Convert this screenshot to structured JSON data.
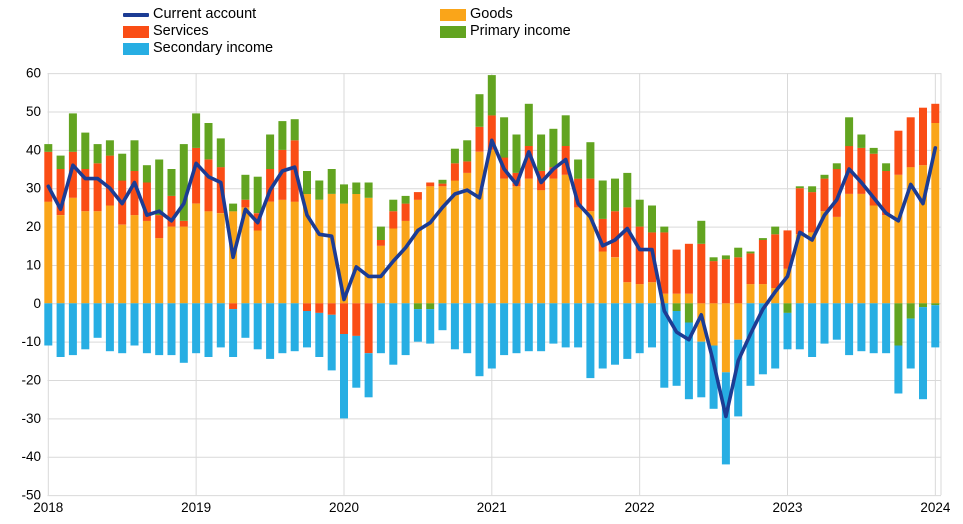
{
  "chart_data": {
    "type": "stacked-bar+line",
    "title": "",
    "xlabel": "",
    "ylabel": "",
    "ylim": [
      -50,
      60
    ],
    "y_ticks": [
      60,
      50,
      40,
      30,
      20,
      10,
      0,
      -10,
      -20,
      -30,
      -40,
      -50
    ],
    "x_tick_labels": [
      "2018",
      "2019",
      "2020",
      "2021",
      "2022",
      "2023",
      "2024"
    ],
    "grid": true,
    "legend_position": "top-left-two-columns",
    "grid_color": "#d9d9d9",
    "categories": [
      "2018-01",
      "2018-02",
      "2018-03",
      "2018-04",
      "2018-05",
      "2018-06",
      "2018-07",
      "2018-08",
      "2018-09",
      "2018-10",
      "2018-11",
      "2018-12",
      "2019-01",
      "2019-02",
      "2019-03",
      "2019-04",
      "2019-05",
      "2019-06",
      "2019-07",
      "2019-08",
      "2019-09",
      "2019-10",
      "2019-11",
      "2019-12",
      "2020-01",
      "2020-02",
      "2020-03",
      "2020-04",
      "2020-05",
      "2020-06",
      "2020-07",
      "2020-08",
      "2020-09",
      "2020-10",
      "2020-11",
      "2020-12",
      "2021-01",
      "2021-02",
      "2021-03",
      "2021-04",
      "2021-05",
      "2021-06",
      "2021-07",
      "2021-08",
      "2021-09",
      "2021-10",
      "2021-11",
      "2021-12",
      "2022-01",
      "2022-02",
      "2022-03",
      "2022-04",
      "2022-05",
      "2022-06",
      "2022-07",
      "2022-08",
      "2022-09",
      "2022-10",
      "2022-11",
      "2022-12",
      "2023-01",
      "2023-02",
      "2023-03",
      "2023-04",
      "2023-05",
      "2023-06",
      "2023-07",
      "2023-08",
      "2023-09",
      "2023-10",
      "2023-11",
      "2023-12",
      "2024-01"
    ],
    "series": [
      {
        "name": "Goods",
        "type": "bar",
        "color": "#FAA519",
        "values": [
          26.5,
          23,
          27.5,
          24,
          24,
          25.5,
          20.5,
          23,
          21.5,
          17,
          20,
          20,
          26,
          24,
          23.5,
          24,
          25,
          19,
          26.5,
          27,
          26.5,
          28.5,
          27,
          28.5,
          26,
          28.5,
          27.5,
          15,
          19.5,
          21.5,
          27,
          30.5,
          30.5,
          32,
          34,
          39.5,
          40,
          32.5,
          30.5,
          32.5,
          29.5,
          32.5,
          33.5,
          25,
          24,
          13.5,
          12,
          5.5,
          5,
          5.5,
          2.5,
          2.5,
          2.5,
          -10,
          -11,
          -18,
          -9.5,
          5,
          5,
          4,
          9,
          18,
          18.5,
          24,
          22.5,
          28.5,
          28.5,
          25.5,
          23,
          33.5,
          35.5,
          36,
          47
        ]
      },
      {
        "name": "Services",
        "type": "bar",
        "color": "#FA4D15",
        "values": [
          13,
          12,
          12,
          11,
          12.5,
          13,
          11.5,
          11.5,
          10,
          6,
          8,
          1.5,
          14.5,
          13.5,
          12,
          -1.5,
          2,
          4.5,
          8.5,
          13,
          16,
          -2,
          -2.5,
          -3,
          -8,
          -8.5,
          -13,
          1.5,
          4.5,
          4.5,
          2,
          1,
          0.7,
          4.5,
          3,
          6.5,
          9,
          5.5,
          3.5,
          8.5,
          5,
          3,
          7.5,
          7.5,
          8.5,
          8.5,
          12,
          19.5,
          15,
          13,
          16,
          11.5,
          13,
          15.5,
          11,
          11.5,
          12,
          8,
          11.5,
          14,
          10,
          12,
          10.5,
          8.5,
          12.5,
          12.5,
          12,
          13.5,
          11.5,
          11.5,
          13,
          15,
          5
        ]
      },
      {
        "name": "Primary income",
        "type": "bar",
        "color": "#62A420",
        "values": [
          2,
          3.5,
          10,
          9.5,
          5,
          4,
          7,
          8,
          4.5,
          14.5,
          7,
          20,
          9,
          9.5,
          7.5,
          2,
          6.5,
          9.5,
          9,
          7.5,
          5.5,
          6,
          5,
          6.5,
          5,
          3,
          4,
          3.5,
          3,
          2,
          -1.5,
          -1.5,
          1,
          3.8,
          5.5,
          8.5,
          10.5,
          10.5,
          10,
          11,
          9.5,
          10,
          8,
          5,
          9.5,
          10,
          8.5,
          9,
          7,
          7,
          1.5,
          -2,
          -5,
          6,
          1,
          1,
          2.5,
          0.5,
          0.5,
          2,
          -2.5,
          0.5,
          1.5,
          1,
          1.5,
          7.5,
          3.5,
          1.5,
          2,
          -11,
          -4,
          -1,
          -0.5
        ]
      },
      {
        "name": "Secondary income",
        "type": "bar",
        "color": "#27AEE3",
        "values": [
          -11,
          -14,
          -13.5,
          -12,
          -9,
          -12.5,
          -13,
          -11,
          -13,
          -13.5,
          -13.5,
          -15.5,
          -13,
          -14,
          -11.5,
          -12.5,
          -9,
          -12,
          -14.5,
          -13,
          -12.5,
          -9.5,
          -11.5,
          -14.5,
          -22,
          -13.5,
          -11.5,
          -13,
          -16,
          -13.5,
          -8.5,
          -9,
          -7,
          -12,
          -13,
          -19,
          -17,
          -13.5,
          -13,
          -12.5,
          -12.5,
          -10.5,
          -11.5,
          -11.5,
          -19.5,
          -17,
          -16,
          -14.5,
          -13,
          -11.5,
          -22,
          -19.5,
          -20,
          -14.5,
          -16.5,
          -24,
          -20,
          -21.5,
          -18.5,
          -17,
          -9.5,
          -12,
          -14,
          -10.5,
          -9.5,
          -13.5,
          -12.5,
          -13,
          -13,
          -12.5,
          -13,
          -24,
          -11
        ]
      },
      {
        "name": "Current account",
        "type": "line",
        "color": "#1C3C94",
        "values": [
          30.5,
          24.5,
          36,
          32.5,
          32.5,
          30,
          26,
          31.5,
          23,
          24,
          21.5,
          26,
          36.5,
          33,
          31.5,
          12,
          24.5,
          21,
          29.5,
          34.5,
          35.5,
          23,
          18,
          17.5,
          1,
          9.5,
          7,
          7,
          11,
          14.5,
          19,
          21,
          25,
          28.5,
          29.5,
          27.5,
          42.5,
          35,
          31,
          39.5,
          31.5,
          35,
          37.5,
          26,
          22.5,
          15,
          16.5,
          19.5,
          14,
          14,
          -2,
          -7.5,
          -9.5,
          -3,
          -15.5,
          -29.5,
          -15,
          -8,
          -1.5,
          3,
          7,
          18.5,
          16.5,
          23,
          27,
          35,
          31.5,
          27.5,
          23.5,
          21.5,
          31,
          26,
          40.5
        ]
      }
    ],
    "legend": [
      {
        "label": "Current account",
        "swatch": "line",
        "color": "#1C3C94"
      },
      {
        "label": "Services",
        "swatch": "bar",
        "color": "#FA4D15"
      },
      {
        "label": "Secondary income",
        "swatch": "bar",
        "color": "#27AEE3"
      },
      {
        "label": "Goods",
        "swatch": "bar",
        "color": "#FAA519"
      },
      {
        "label": "Primary income",
        "swatch": "bar",
        "color": "#62A420"
      }
    ]
  }
}
